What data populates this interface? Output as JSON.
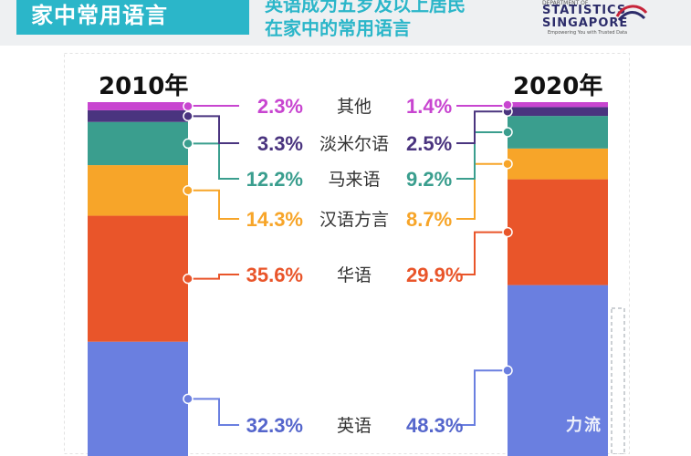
{
  "header": {
    "title": "家中常用语言",
    "subtitle_line1": "英语成为五岁及以上居民",
    "subtitle_line2": "在家中的常用语言"
  },
  "logo": {
    "line1": "DEPARTMENT OF",
    "line2": "STATISTICS",
    "line3": "SINGAPORE",
    "tagline": "Empowering You with Trusted Data"
  },
  "watermark": "力流",
  "chart_data": {
    "type": "bar",
    "stacked": true,
    "orientation": "vertical",
    "categories": [
      "2010年",
      "2020年"
    ],
    "series": [
      {
        "name": "英语",
        "values": [
          32.3,
          48.3
        ],
        "color": "#6a7fe0",
        "label_color": "#5566cc"
      },
      {
        "name": "华语",
        "values": [
          35.6,
          29.9
        ],
        "color": "#e9552a",
        "label_color": "#e9552a"
      },
      {
        "name": "汉语方言",
        "values": [
          14.3,
          8.7
        ],
        "color": "#f7a529",
        "label_color": "#f7a529"
      },
      {
        "name": "马来语",
        "values": [
          12.2,
          9.2
        ],
        "color": "#3a9e8e",
        "label_color": "#3a9e8e"
      },
      {
        "name": "淡米尔语",
        "values": [
          3.3,
          2.5
        ],
        "color": "#4a347f",
        "label_color": "#4a347f"
      },
      {
        "name": "其他",
        "values": [
          2.3,
          1.4
        ],
        "color": "#c845d0",
        "label_color": "#c845d0"
      }
    ],
    "value_labels": [
      [
        "32.3%",
        "48.3%"
      ],
      [
        "35.6%",
        "29.9%"
      ],
      [
        "14.3%",
        "8.7%"
      ],
      [
        "12.2%",
        "9.2%"
      ],
      [
        "3.3%",
        "2.5%"
      ],
      [
        "2.3%",
        "1.4%"
      ]
    ],
    "ylim": [
      0,
      100
    ],
    "title": "家中常用语言",
    "xlabel": "",
    "ylabel": "",
    "grid": false,
    "legend": "center"
  }
}
